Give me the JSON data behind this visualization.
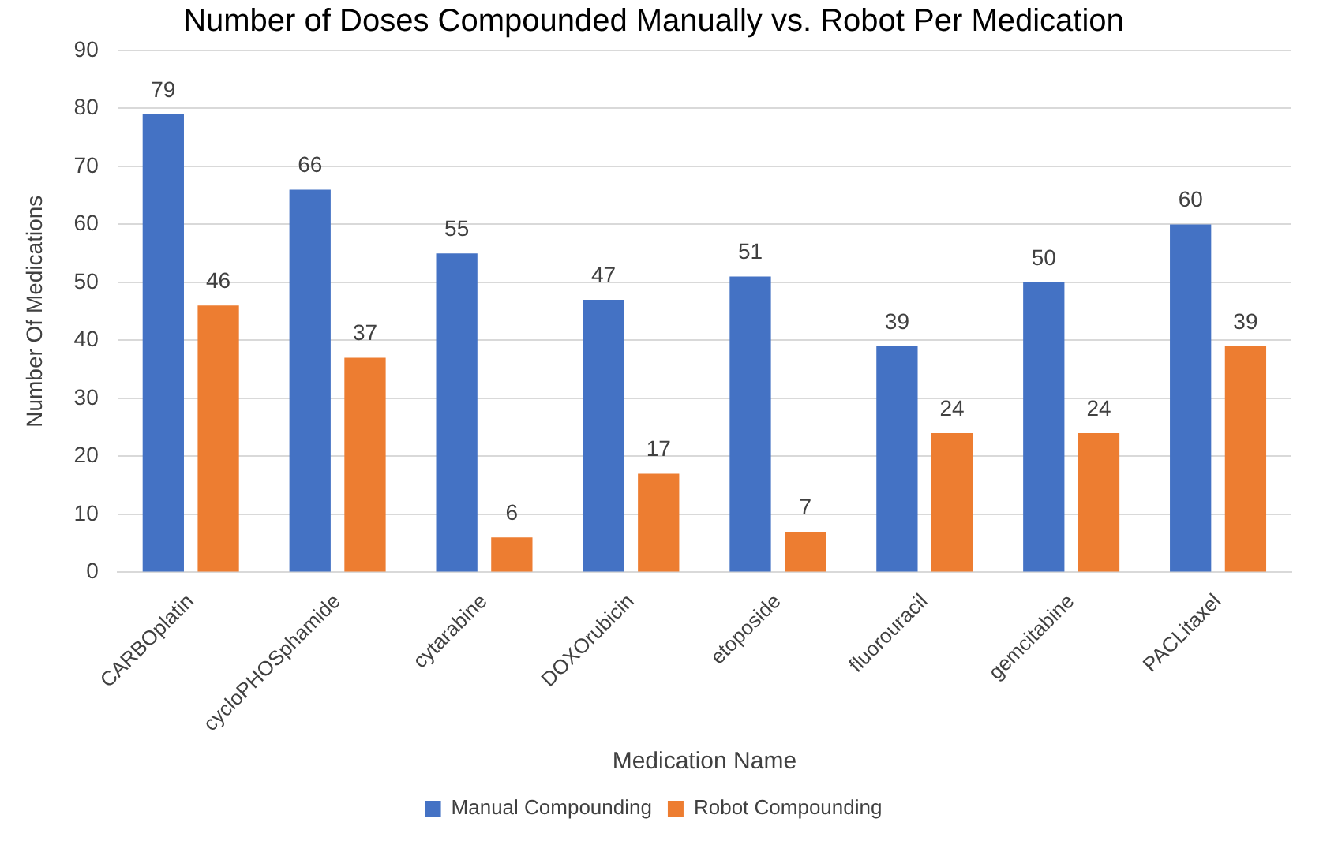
{
  "chart_data": {
    "type": "bar",
    "title": "Number of Doses Compounded Manually vs. Robot Per Medication",
    "xlabel": "Medication Name",
    "ylabel": "Number Of Medications",
    "categories": [
      "CARBOplatin",
      "cycloPHOSphamide",
      "cytarabine",
      "DOXOrubicin",
      "etoposide",
      "fluorouracil",
      "gemcitabine",
      "PACLitaxel"
    ],
    "series": [
      {
        "name": "Manual Compounding",
        "color": "#4472c4",
        "values": [
          79,
          66,
          55,
          47,
          51,
          39,
          50,
          60
        ]
      },
      {
        "name": "Robot Compounding",
        "color": "#ed7d31",
        "values": [
          46,
          37,
          6,
          17,
          7,
          24,
          24,
          39
        ]
      }
    ],
    "ylim": [
      0,
      90
    ],
    "yticks": [
      0,
      10,
      20,
      30,
      40,
      50,
      60,
      70,
      80,
      90
    ],
    "grid": "y",
    "legend": "bottom",
    "data_labels": true
  }
}
